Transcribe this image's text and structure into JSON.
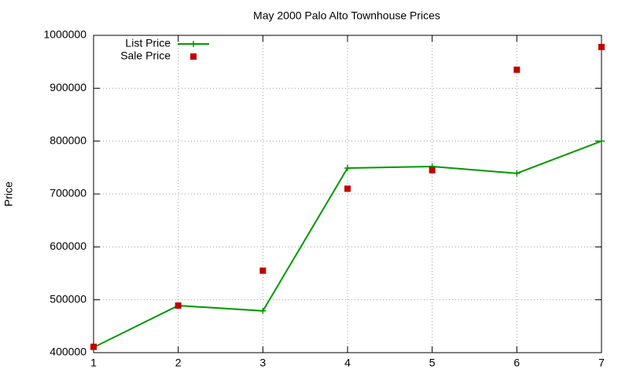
{
  "chart_data": {
    "type": "line",
    "title": "May 2000 Palo Alto Townhouse Prices",
    "y_label": "Price",
    "x": [
      1,
      2,
      3,
      4,
      5,
      6,
      7
    ],
    "series": [
      {
        "name": "List Price",
        "color": "#009900",
        "style": "linespoints",
        "values": [
          410000,
          489000,
          479000,
          749000,
          752000,
          739000,
          800000
        ]
      },
      {
        "name": "Sale Price",
        "color": "#c00000",
        "style": "points",
        "values": [
          411000,
          489000,
          555000,
          710000,
          745000,
          935000,
          978000
        ]
      }
    ],
    "xlim": [
      1,
      7
    ],
    "xticks": [
      1,
      2,
      3,
      4,
      5,
      6,
      7
    ],
    "ylim": [
      400000,
      1000000
    ],
    "yticks": [
      400000,
      500000,
      600000,
      700000,
      800000,
      900000,
      1000000
    ],
    "grid": true,
    "legend": "top-left"
  }
}
